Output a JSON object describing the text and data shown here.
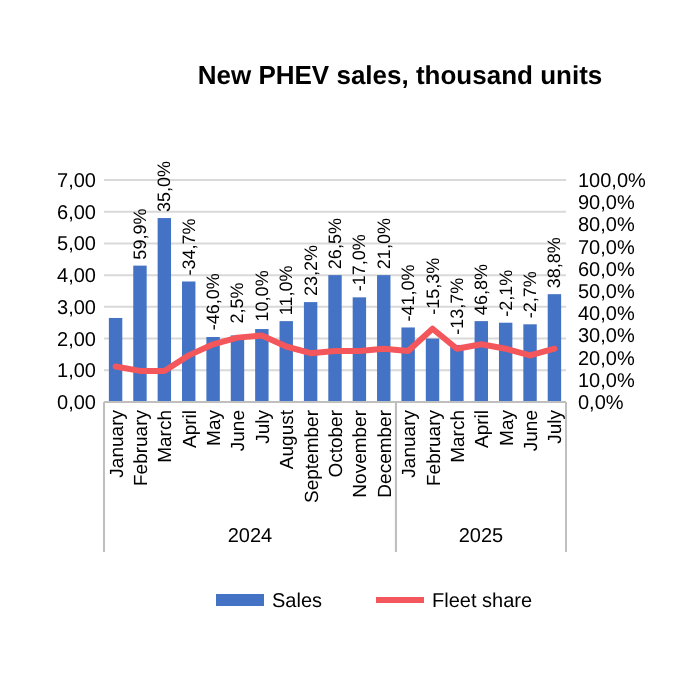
{
  "chart_data": {
    "type": "bar",
    "title": "New PHEV sales, thousand units",
    "categories": [
      "January",
      "February",
      "March",
      "April",
      "May",
      "June",
      "July",
      "August",
      "September",
      "October",
      "November",
      "December",
      "January",
      "February",
      "March",
      "April",
      "May",
      "June",
      "July"
    ],
    "series": [
      {
        "name": "Sales",
        "color": "#4472c4",
        "values": [
          2.65,
          4.3,
          5.8,
          3.8,
          2.05,
          2.1,
          2.3,
          2.55,
          3.15,
          4.0,
          3.3,
          4.0,
          2.35,
          2.0,
          1.8,
          2.55,
          2.5,
          2.45,
          3.4
        ]
      },
      {
        "name": "Fleet share",
        "type": "line",
        "axis": "y2",
        "color": "#f4575b",
        "values": [
          16,
          14,
          14,
          21,
          26,
          29,
          30,
          25,
          22,
          23,
          23,
          24,
          23,
          33,
          24,
          26,
          24,
          21,
          24
        ]
      }
    ],
    "ylim": [
      0,
      7
    ],
    "yticks": [
      {
        "value": 0,
        "label": "0,00"
      },
      {
        "value": 1,
        "label": "1,00"
      },
      {
        "value": 2,
        "label": "2,00"
      },
      {
        "value": 3,
        "label": "3,00"
      },
      {
        "value": 4,
        "label": "4,00"
      },
      {
        "value": 5,
        "label": "5,00"
      },
      {
        "value": 6,
        "label": "6,00"
      },
      {
        "value": 7,
        "label": "7,00"
      }
    ],
    "y2lim": [
      0,
      100
    ],
    "y2ticks": [
      {
        "value": 0,
        "label": "0,0%"
      },
      {
        "value": 10,
        "label": "10,0%"
      },
      {
        "value": 20,
        "label": "20,0%"
      },
      {
        "value": 30,
        "label": "30,0%"
      },
      {
        "value": 40,
        "label": "40,0%"
      },
      {
        "value": 50,
        "label": "50,0%"
      },
      {
        "value": 60,
        "label": "60,0%"
      },
      {
        "value": 70,
        "label": "70,0%"
      },
      {
        "value": 80,
        "label": "80,0%"
      },
      {
        "value": 90,
        "label": "90,0%"
      },
      {
        "value": 100,
        "label": "100,0%"
      }
    ],
    "annotations": [
      "2024",
      "2025",
      "59,9%",
      "35,0%",
      "-34,7%",
      "-46,0%",
      "2,5%",
      "10,0%",
      "11,0%",
      "23,2%",
      "26,5%",
      "-17,0%",
      "21,0%",
      "-41,0%",
      "-15,3%",
      "-13,7%",
      "46,8%",
      "-2,1%",
      "-2,7%",
      "38,8%"
    ],
    "grid": "y",
    "legend": "bottom",
    "marker": "none",
    "line_style": "solid"
  }
}
